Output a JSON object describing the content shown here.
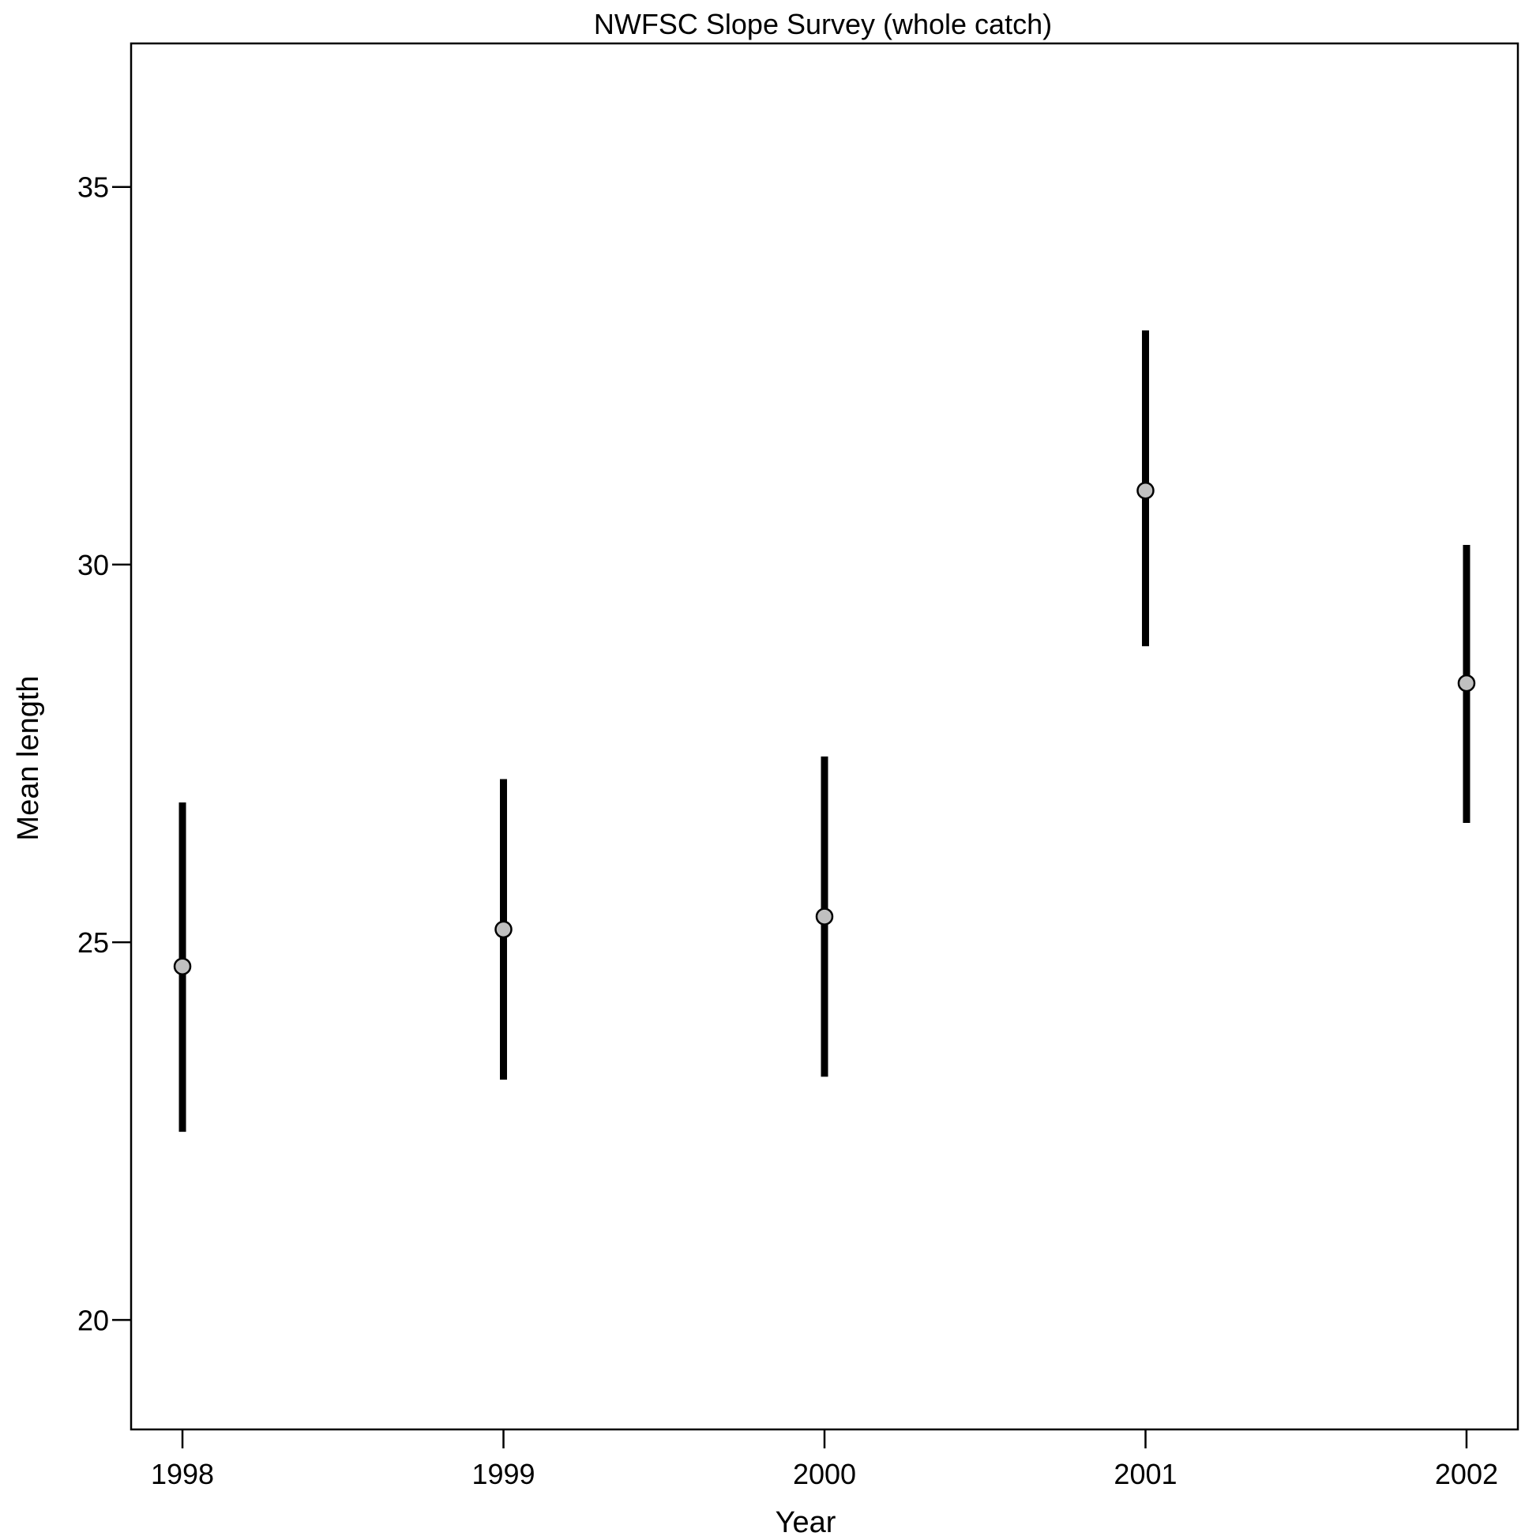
{
  "chart_data": {
    "type": "scatter",
    "title": "NWFSC Slope Survey (whole catch)",
    "xlabel": "Year",
    "ylabel": "Mean length",
    "x": [
      1998,
      1999,
      2000,
      2001,
      2002
    ],
    "x_tick_labels": [
      "1998",
      "1999",
      "2000",
      "2001",
      "2002"
    ],
    "y_ticks": [
      20,
      25,
      30,
      35
    ],
    "y_tick_labels": [
      "20",
      "25",
      "30",
      "35"
    ],
    "xlim": [
      1997.84,
      2002.16
    ],
    "ylim": [
      18.55,
      36.9
    ],
    "grid": false,
    "marker_color": "#c0c0c0",
    "bar_color": "#000000",
    "series": [
      {
        "mean": [
          24.68,
          25.17,
          25.34,
          30.98,
          28.43
        ],
        "lower": [
          22.49,
          23.18,
          23.22,
          28.92,
          26.58
        ],
        "upper": [
          26.85,
          27.16,
          27.46,
          33.1,
          30.26
        ]
      }
    ]
  }
}
